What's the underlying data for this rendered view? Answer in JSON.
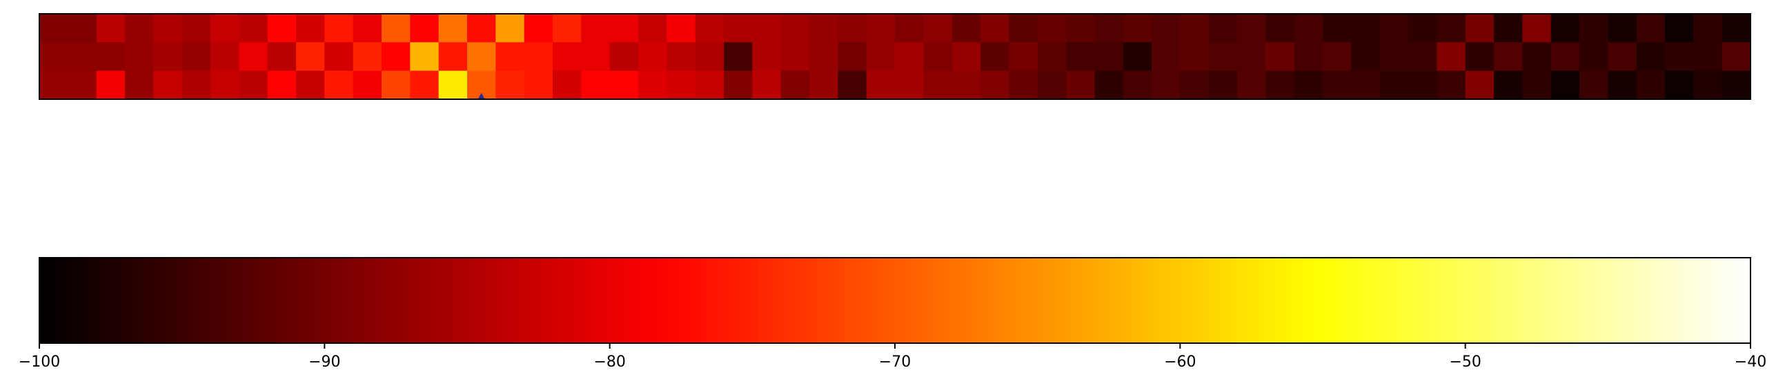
{
  "chart_data": [
    {
      "type": "heatmap",
      "colormap": "hot",
      "vmin": -100,
      "vmax": -40,
      "rows": 3,
      "cols": 60,
      "values": [
        [
          -89,
          -89,
          -84,
          -87,
          -85,
          -86,
          -83,
          -84,
          -78,
          -82,
          -76,
          -80,
          -70,
          -78,
          -68,
          -77,
          -64,
          -78,
          -75,
          -80,
          -80,
          -83,
          -79,
          -84,
          -85,
          -85,
          -86,
          -87,
          -88,
          -87,
          -89,
          -88,
          -91,
          -89,
          -92,
          -91,
          -92,
          -93,
          -92,
          -93,
          -92,
          -94,
          -93,
          -95,
          -94,
          -96,
          -96,
          -95,
          -96,
          -95,
          -90,
          -97,
          -89,
          -98,
          -96,
          -98,
          -95,
          -99,
          -96,
          -98
        ],
        [
          -88,
          -88,
          -88,
          -87,
          -86,
          -87,
          -84,
          -80,
          -84,
          -75,
          -82,
          -75,
          -78,
          -62,
          -76,
          -68,
          -76,
          -76,
          -80,
          -80,
          -84,
          -82,
          -84,
          -85,
          -94,
          -85,
          -86,
          -87,
          -90,
          -87,
          -86,
          -89,
          -87,
          -92,
          -90,
          -92,
          -94,
          -94,
          -97,
          -93,
          -92,
          -93,
          -93,
          -91,
          -94,
          -93,
          -96,
          -95,
          -95,
          -89,
          -96,
          -93,
          -96,
          -94,
          -96,
          -94,
          -97,
          -96,
          -96,
          -93
        ],
        [
          -87,
          -87,
          -79,
          -87,
          -83,
          -85,
          -83,
          -84,
          -78,
          -83,
          -76,
          -79,
          -72,
          -76,
          -57,
          -70,
          -75,
          -76,
          -82,
          -78,
          -78,
          -81,
          -82,
          -83,
          -89,
          -84,
          -89,
          -87,
          -94,
          -86,
          -86,
          -88,
          -88,
          -89,
          -91,
          -93,
          -91,
          -96,
          -94,
          -93,
          -94,
          -95,
          -93,
          -95,
          -96,
          -95,
          -95,
          -96,
          -96,
          -95,
          -89,
          -98,
          -96,
          -99,
          -95,
          -98,
          -96,
          -99,
          -97,
          -98
        ]
      ],
      "marker": {
        "col": 15,
        "row": 2.9,
        "color": "#2b2b9a",
        "shape": "triangle"
      }
    },
    {
      "type": "colorbar",
      "colormap": "hot",
      "range": [
        -100,
        -40
      ],
      "tick_labels": [
        "−100",
        "−90",
        "−80",
        "−70",
        "−60",
        "−50",
        "−40"
      ],
      "tick_values": [
        -100,
        -90,
        -80,
        -70,
        -60,
        -50,
        -40
      ]
    }
  ]
}
